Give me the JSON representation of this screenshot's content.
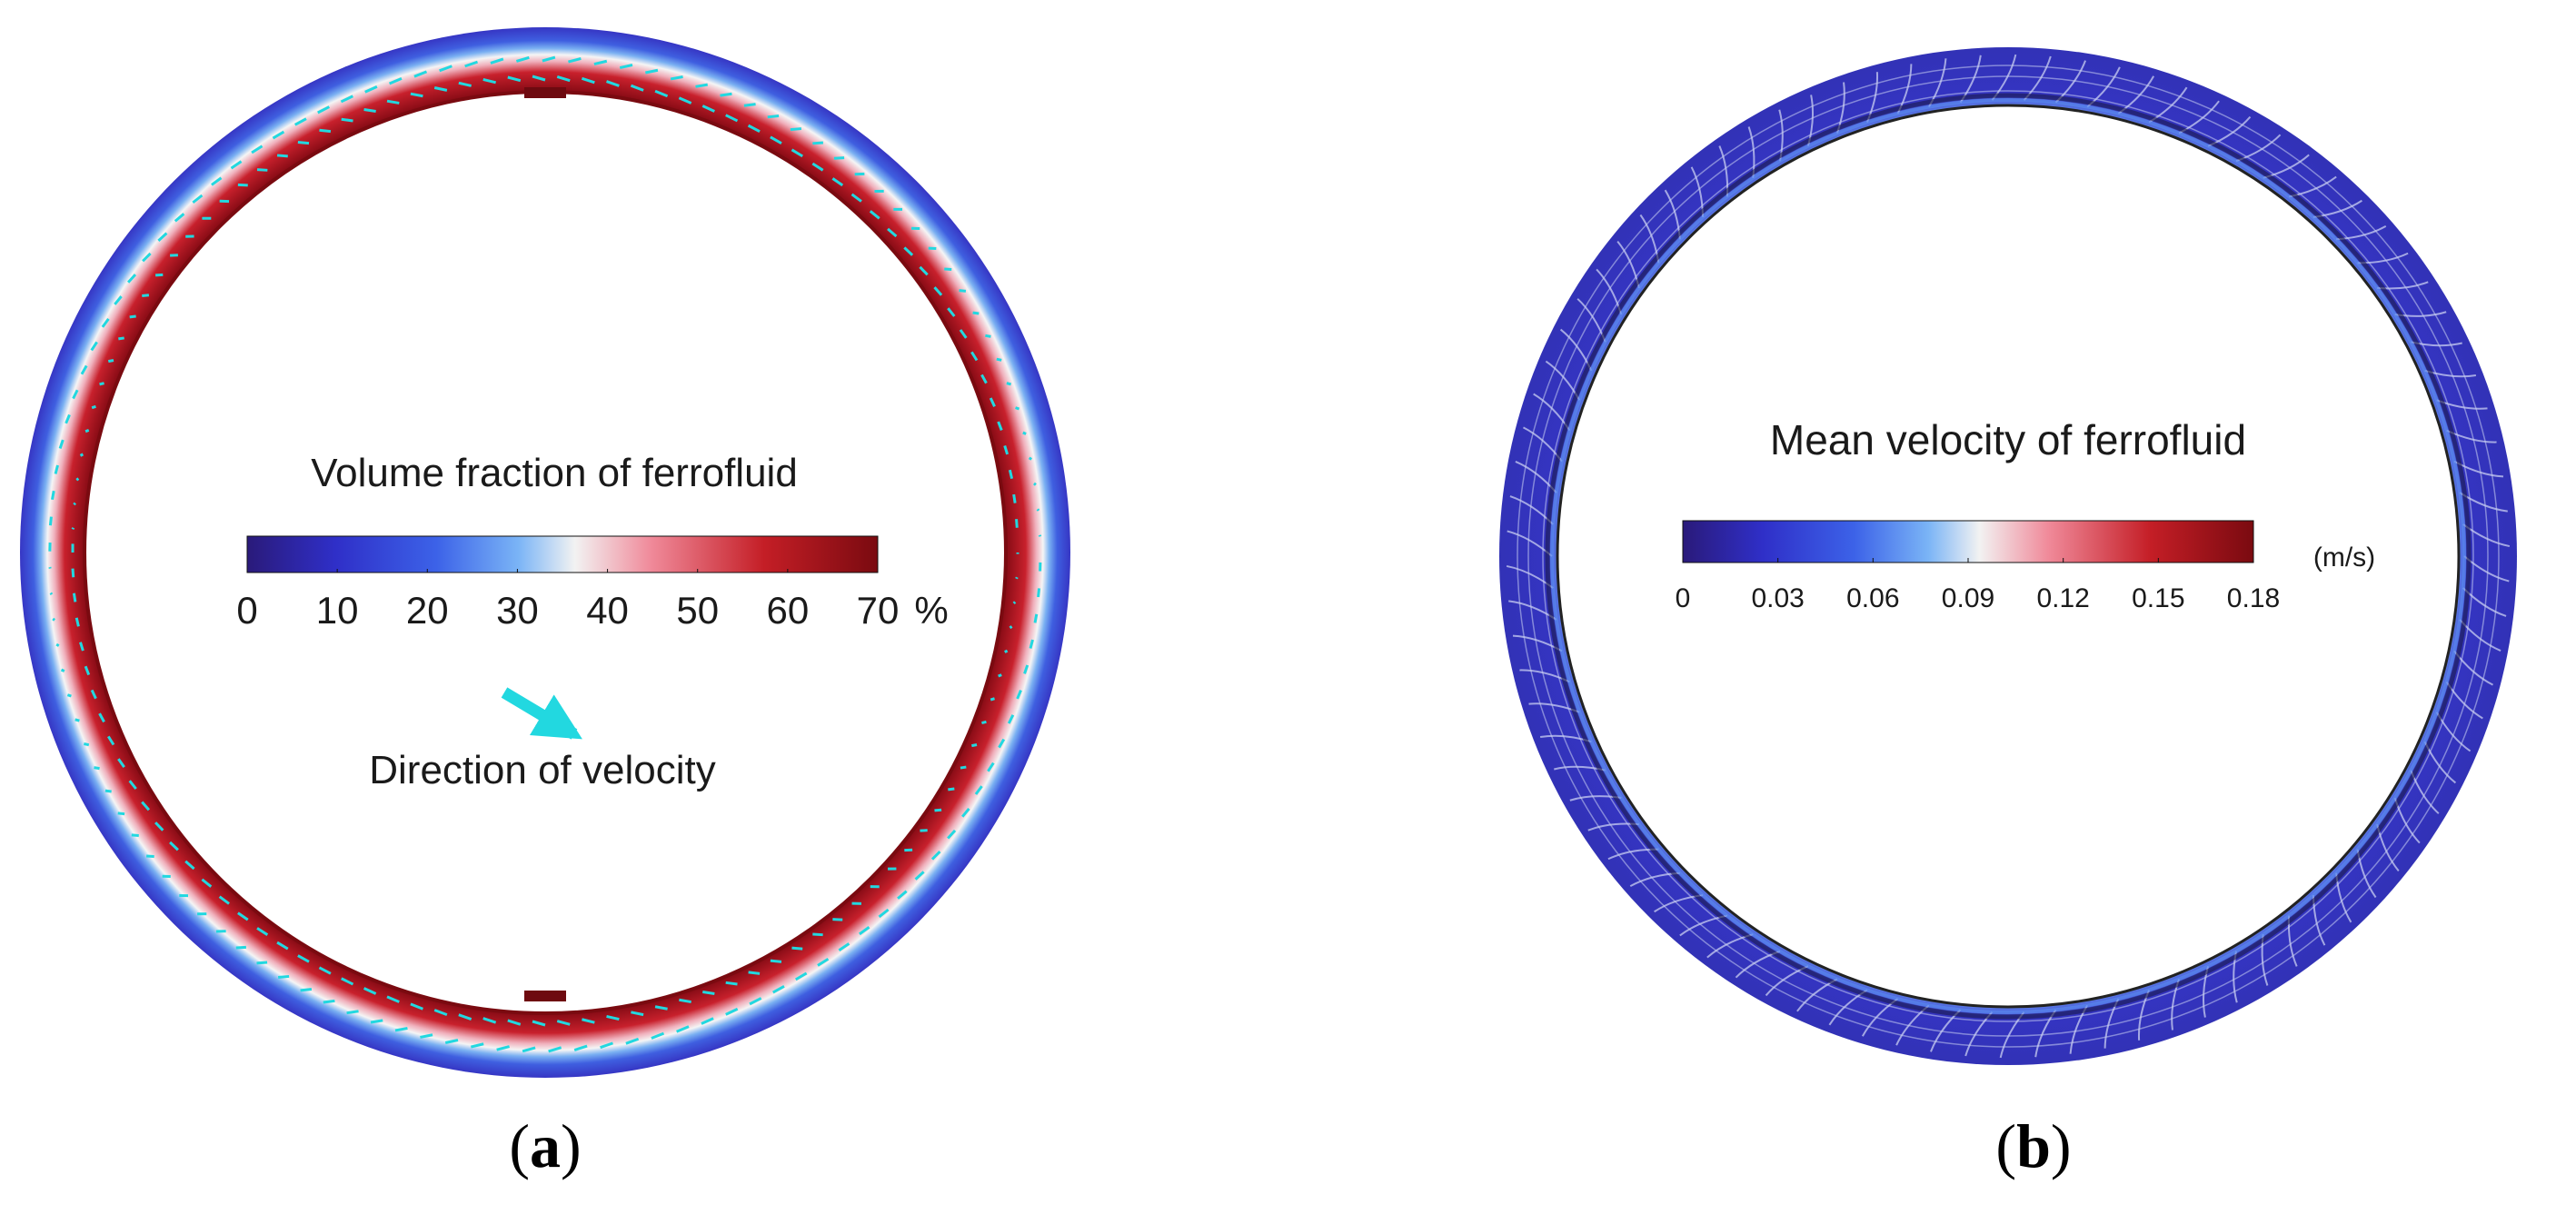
{
  "panel_a": {
    "tag_open": "(",
    "tag_letter": "a",
    "tag_close": ")",
    "colorbar_title": "Volume fraction of ferrofluid",
    "ticks": [
      "0",
      "10",
      "20",
      "30",
      "40",
      "50",
      "60",
      "70"
    ],
    "unit": "%",
    "arrow_legend": "Direction of velocity",
    "arrow_color": "#22d8e0"
  },
  "panel_b": {
    "tag_open": "(",
    "tag_letter": "b",
    "tag_close": ")",
    "colorbar_title": "Mean velocity of ferrofluid",
    "ticks": [
      "0",
      "0.03",
      "0.06",
      "0.09",
      "0.12",
      "0.15",
      "0.18"
    ],
    "unit": "(m/s)"
  },
  "colormap": [
    "#2a1a7a",
    "#2f2fc8",
    "#3c62e8",
    "#7ab4f6",
    "#f2f2f2",
    "#f08a9a",
    "#c41e26",
    "#7a0a10"
  ],
  "ring_color": "#3b37c9"
}
